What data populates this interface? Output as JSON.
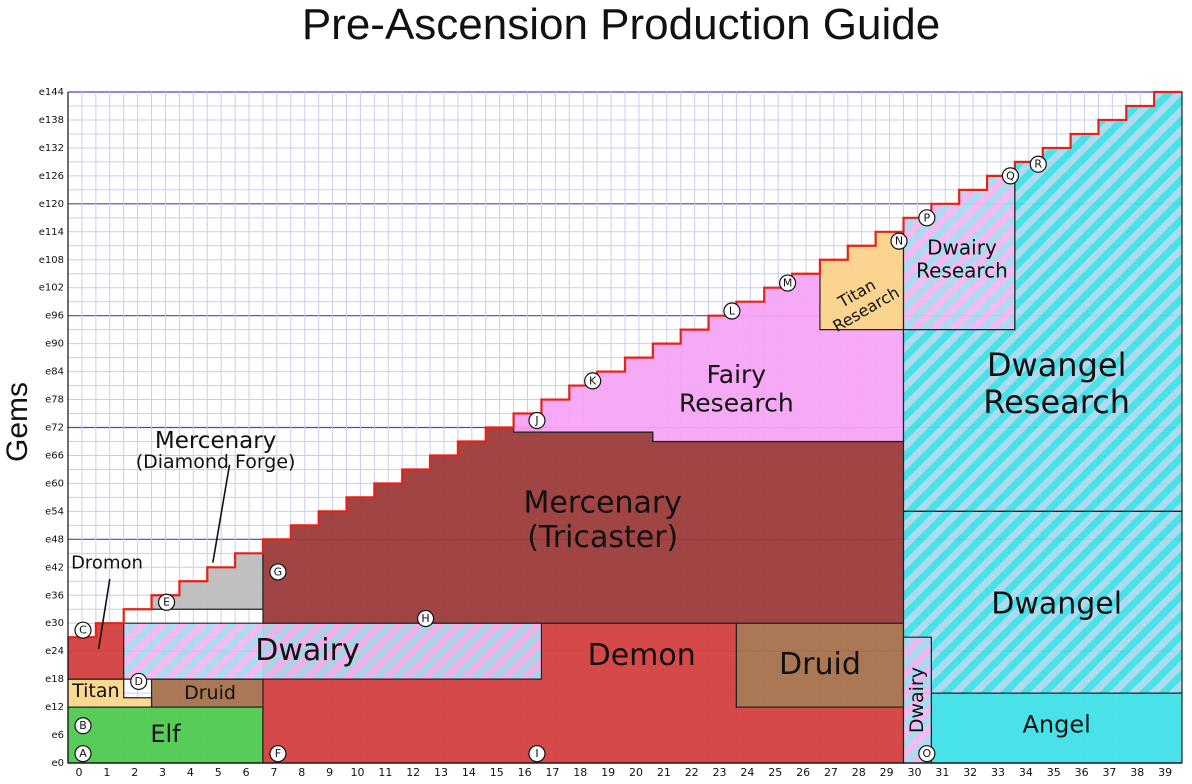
{
  "title": "Pre-Ascension Production Guide",
  "ylabel": "Gems",
  "colors": {
    "elf": "#4fc94f",
    "demon": "#d43f3f",
    "mercenary": "#9b3a3a",
    "druid": "#a5714b",
    "titan": "#fbd78a",
    "fairy": "#f5a4f3",
    "dwangel": "#3fe0e8",
    "angel": "#3fe0e8",
    "dwairy_a": "#f4b6f2",
    "dwairy_b": "#a9d9ef",
    "diamond": "#bdbdbd",
    "frontier": "#e2231a",
    "grid": "#ccccf0",
    "grid_major": "#4444cc"
  },
  "chart_data": {
    "type": "area",
    "title": "Pre-Ascension Production Guide",
    "xlabel": "",
    "ylabel": "Gems",
    "x_ticks": [
      "0",
      "1",
      "2",
      "3",
      "4",
      "5",
      "6",
      "7",
      "8",
      "9",
      "10",
      "11",
      "12",
      "13",
      "14",
      "15",
      "16",
      "17",
      "18",
      "19",
      "20",
      "21",
      "22",
      "23",
      "24",
      "25",
      "26",
      "27",
      "28",
      "29",
      "30",
      "31",
      "32",
      "33",
      "34",
      "35",
      "36",
      "37",
      "38",
      "39"
    ],
    "y_ticks": [
      "e0",
      "e6",
      "e12",
      "e18",
      "e24",
      "e30",
      "e36",
      "e42",
      "e48",
      "e54",
      "e60",
      "e66",
      "e72",
      "e78",
      "e84",
      "e90",
      "e96",
      "e102",
      "e108",
      "e114",
      "e120",
      "e126",
      "e132",
      "e138",
      "e144"
    ],
    "xlim": [
      0,
      40
    ],
    "ylim": [
      0,
      144
    ],
    "grid": true,
    "frontier": [
      [
        0,
        27
      ],
      [
        1,
        30
      ],
      [
        2,
        33
      ],
      [
        3,
        36
      ],
      [
        4,
        39
      ],
      [
        5,
        42
      ],
      [
        6,
        45
      ],
      [
        7,
        48
      ],
      [
        8,
        51
      ],
      [
        9,
        54
      ],
      [
        10,
        57
      ],
      [
        11,
        60
      ],
      [
        12,
        63
      ],
      [
        13,
        66
      ],
      [
        14,
        69
      ],
      [
        15,
        72
      ],
      [
        16,
        75
      ],
      [
        17,
        78
      ],
      [
        18,
        81
      ],
      [
        19,
        84
      ],
      [
        20,
        87
      ],
      [
        21,
        90
      ],
      [
        22,
        93
      ],
      [
        23,
        96
      ],
      [
        24,
        99
      ],
      [
        25,
        102
      ],
      [
        26,
        105
      ],
      [
        27,
        108
      ],
      [
        28,
        111
      ],
      [
        29,
        114
      ],
      [
        30,
        117
      ],
      [
        31,
        120
      ],
      [
        32,
        123
      ],
      [
        33,
        126
      ],
      [
        34,
        129
      ],
      [
        35,
        132
      ],
      [
        36,
        135
      ],
      [
        37,
        138
      ],
      [
        38,
        141
      ],
      [
        39,
        144
      ],
      [
        40,
        144
      ]
    ],
    "regions": [
      {
        "label": "Elf",
        "color_key": "elf",
        "points": [
          [
            0,
            0
          ],
          [
            7,
            0
          ],
          [
            7,
            12
          ],
          [
            0,
            12
          ]
        ],
        "label_x": 3.5,
        "label_y": 6
      },
      {
        "label": "Demon",
        "color_key": "demon",
        "points": [
          [
            7,
            0
          ],
          [
            30,
            0
          ],
          [
            30,
            12
          ],
          [
            24,
            12
          ],
          [
            24,
            30
          ],
          [
            7,
            30
          ]
        ],
        "label_x": 20.6,
        "label_y": 23
      },
      {
        "label": "Druid",
        "color_key": "druid",
        "points": [
          [
            24,
            12
          ],
          [
            30,
            12
          ],
          [
            30,
            30
          ],
          [
            24,
            30
          ]
        ],
        "label_x": 27,
        "label_y": 21
      },
      {
        "label": "Druid",
        "color_key": "druid",
        "points": [
          [
            3,
            12
          ],
          [
            7,
            12
          ],
          [
            7,
            18
          ],
          [
            3,
            18
          ]
        ],
        "label_x": 5.1,
        "label_y": 15
      },
      {
        "label": "Titan",
        "color_key": "titan",
        "points": [
          [
            0,
            12
          ],
          [
            3,
            12
          ],
          [
            3,
            14
          ],
          [
            2,
            14
          ],
          [
            2,
            18
          ],
          [
            0,
            18
          ]
        ],
        "label_x": 1,
        "label_y": 15.5
      },
      {
        "label": "Dromon",
        "color_key": "demon",
        "points": [
          [
            0,
            18
          ],
          [
            2,
            18
          ],
          [
            2,
            30
          ],
          [
            1,
            30
          ],
          [
            1,
            27
          ],
          [
            0,
            27
          ]
        ],
        "label_x": -1,
        "label_y": -1
      },
      {
        "label": "Dwairy",
        "color_key": "dwairy_a",
        "striped": true,
        "points": [
          [
            2,
            18
          ],
          [
            17,
            18
          ],
          [
            17,
            30
          ],
          [
            2,
            30
          ]
        ],
        "label_x": 8.6,
        "label_y": 24
      },
      {
        "label": "Mercenary (Diamond Forge)",
        "color_key": "diamond",
        "points": [
          [
            3,
            33
          ],
          [
            7,
            33
          ],
          [
            7,
            45
          ],
          [
            6,
            45
          ],
          [
            6,
            42
          ],
          [
            5,
            42
          ],
          [
            5,
            39
          ],
          [
            4,
            39
          ],
          [
            4,
            36
          ],
          [
            3,
            36
          ]
        ],
        "label_x": -1,
        "label_y": -1
      },
      {
        "label": "Mercenary (Tricaster)",
        "color_key": "mercenary",
        "points": [
          [
            7,
            30
          ],
          [
            30,
            30
          ],
          [
            30,
            69
          ],
          [
            21,
            69
          ],
          [
            21,
            71
          ],
          [
            17,
            71
          ],
          [
            17,
            72
          ],
          [
            15,
            72
          ],
          [
            15,
            69
          ],
          [
            14,
            69
          ],
          [
            14,
            66
          ],
          [
            13,
            66
          ],
          [
            13,
            63
          ],
          [
            12,
            63
          ],
          [
            12,
            60
          ],
          [
            11,
            60
          ],
          [
            11,
            57
          ],
          [
            10,
            57
          ],
          [
            10,
            54
          ],
          [
            9,
            54
          ],
          [
            9,
            51
          ],
          [
            8,
            51
          ],
          [
            8,
            48
          ],
          [
            7,
            48
          ]
        ],
        "label_x": 19.2,
        "label_y": 52
      },
      {
        "label": "Fairy Research",
        "color_key": "fairy",
        "points": [
          [
            16,
            71
          ],
          [
            21,
            71
          ],
          [
            21,
            69
          ],
          [
            30,
            69
          ],
          [
            30,
            114
          ],
          [
            29,
            114
          ],
          [
            29,
            111
          ],
          [
            28,
            111
          ],
          [
            28,
            108
          ],
          [
            27,
            108
          ],
          [
            27,
            105
          ],
          [
            26,
            105
          ],
          [
            26,
            102
          ],
          [
            25,
            102
          ],
          [
            25,
            99
          ],
          [
            24,
            99
          ],
          [
            24,
            96
          ],
          [
            23,
            96
          ],
          [
            23,
            93
          ],
          [
            22,
            93
          ],
          [
            22,
            90
          ],
          [
            21,
            90
          ],
          [
            21,
            87
          ],
          [
            20,
            87
          ],
          [
            20,
            84
          ],
          [
            19,
            84
          ],
          [
            19,
            81
          ],
          [
            18,
            81
          ],
          [
            18,
            78
          ],
          [
            17,
            78
          ],
          [
            17,
            75
          ],
          [
            16,
            75
          ]
        ],
        "label_x": 24,
        "label_y": 80
      },
      {
        "label": "Titan Research",
        "color_key": "titan",
        "points": [
          [
            27,
            93
          ],
          [
            30,
            93
          ],
          [
            30,
            114
          ],
          [
            29,
            114
          ],
          [
            29,
            111
          ],
          [
            28,
            111
          ],
          [
            28,
            108
          ],
          [
            27,
            108
          ]
        ],
        "label_x": 28.5,
        "label_y": 99
      },
      {
        "label": "Dwairy Research",
        "color_key": "dwairy_a",
        "striped": true,
        "points": [
          [
            30,
            93
          ],
          [
            34,
            93
          ],
          [
            34,
            126
          ],
          [
            33,
            126
          ],
          [
            33,
            123
          ],
          [
            32,
            123
          ],
          [
            32,
            120
          ],
          [
            31,
            120
          ],
          [
            31,
            117
          ],
          [
            30,
            117
          ]
        ],
        "label_x": 32.1,
        "label_y": 108
      },
      {
        "label": "Dwangel Research",
        "color_key": "dwangel",
        "striped": true,
        "points": [
          [
            30,
            54
          ],
          [
            40,
            54
          ],
          [
            40,
            144
          ],
          [
            39,
            144
          ],
          [
            39,
            141
          ],
          [
            38,
            141
          ],
          [
            38,
            138
          ],
          [
            37,
            138
          ],
          [
            37,
            135
          ],
          [
            36,
            135
          ],
          [
            36,
            132
          ],
          [
            35,
            132
          ],
          [
            35,
            129
          ],
          [
            34,
            129
          ],
          [
            34,
            93
          ],
          [
            30,
            93
          ]
        ],
        "label_x": 35.5,
        "label_y": 81
      },
      {
        "label": "Dwangel",
        "color_key": "dwangel",
        "striped": true,
        "points": [
          [
            30,
            15
          ],
          [
            40,
            15
          ],
          [
            40,
            54
          ],
          [
            30,
            54
          ]
        ],
        "label_x": 35.5,
        "label_y": 34
      },
      {
        "label": "Angel",
        "color_key": "angel",
        "points": [
          [
            31,
            0
          ],
          [
            40,
            0
          ],
          [
            40,
            15
          ],
          [
            31,
            15
          ]
        ],
        "label_x": 35.5,
        "label_y": 8
      },
      {
        "label": "Dwairy",
        "color_key": "dwairy_a",
        "striped": true,
        "points": [
          [
            30,
            0
          ],
          [
            31,
            0
          ],
          [
            31,
            27
          ],
          [
            30,
            27
          ]
        ],
        "label_x": -1,
        "label_y": -1
      }
    ],
    "markers": [
      {
        "label": "A",
        "x": 0,
        "y": 2
      },
      {
        "label": "B",
        "x": 0,
        "y": 8
      },
      {
        "label": "C",
        "x": 0,
        "y": 28.5
      },
      {
        "label": "D",
        "x": 2,
        "y": 17.5
      },
      {
        "label": "E",
        "x": 3,
        "y": 34.5
      },
      {
        "label": "F",
        "x": 7,
        "y": 2
      },
      {
        "label": "G",
        "x": 7,
        "y": 41
      },
      {
        "label": "H",
        "x": 12.3,
        "y": 31
      },
      {
        "label": "I",
        "x": 16.3,
        "y": 2
      },
      {
        "label": "J",
        "x": 16.3,
        "y": 73.5
      },
      {
        "label": "K",
        "x": 18.3,
        "y": 82
      },
      {
        "label": "L",
        "x": 23.3,
        "y": 97
      },
      {
        "label": "M",
        "x": 25.3,
        "y": 103
      },
      {
        "label": "N",
        "x": 29.3,
        "y": 112
      },
      {
        "label": "O",
        "x": 30.3,
        "y": 2
      },
      {
        "label": "P",
        "x": 30.3,
        "y": 117
      },
      {
        "label": "Q",
        "x": 33.3,
        "y": 126
      },
      {
        "label": "R",
        "x": 34.3,
        "y": 128.5
      }
    ],
    "annotations": [
      {
        "text": "Dromon",
        "x": 1.4,
        "y": 42.8,
        "size": 18,
        "pointer": [
          1.1,
          24.5,
          1.5,
          39.5
        ]
      },
      {
        "text": "Mercenary",
        "x": 5.3,
        "y": 69,
        "size": 23,
        "pointer": [
          5.2,
          43,
          5.8,
          64
        ]
      },
      {
        "text": "(Diamond Forge)",
        "x": 5.3,
        "y": 64.5,
        "size": 19
      },
      {
        "text": "Dwairy",
        "x": 30.5,
        "y": 13.5,
        "size": 19,
        "rotate": -90,
        "color": "#111"
      }
    ]
  }
}
